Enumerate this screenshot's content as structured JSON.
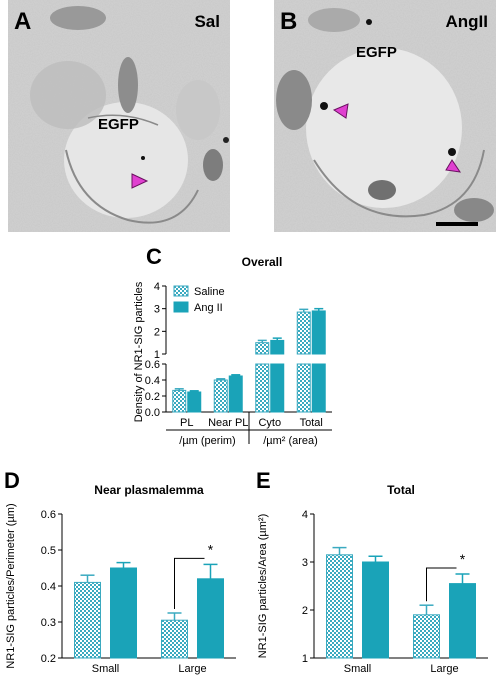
{
  "panels": {
    "a": {
      "letter": "A",
      "condition": "Sal",
      "target_label": "EGFP"
    },
    "b": {
      "letter": "B",
      "condition": "AngII",
      "target_label": "EGFP"
    }
  },
  "colors": {
    "saline": "#3aaac0",
    "angii": "#1aa3b8",
    "arrow": "#e040d0"
  },
  "chart_data": [
    {
      "id": "C",
      "type": "bar",
      "letter": "C",
      "title": "Overall",
      "ylabel": "Density of NR1-SIG particles",
      "categories": [
        "PL",
        "Near PL",
        "Cyto",
        "Total"
      ],
      "series": [
        {
          "name": "Saline",
          "values": [
            0.27,
            0.4,
            1.5,
            2.85
          ],
          "errors": [
            0.02,
            0.015,
            0.1,
            0.12
          ]
        },
        {
          "name": "Ang II",
          "values": [
            0.25,
            0.45,
            1.6,
            2.9
          ],
          "errors": [
            0.015,
            0.015,
            0.1,
            0.1
          ]
        }
      ],
      "axis_break": {
        "lower": [
          0,
          0.6
        ],
        "upper": [
          1,
          4
        ]
      },
      "yticks_lower": [
        "0.0",
        "0.2",
        "0.4",
        "0.6"
      ],
      "yticks_upper": [
        "1",
        "2",
        "3",
        "4"
      ],
      "groups": [
        {
          "label": "/µm (perim)",
          "categories": [
            "PL",
            "Near PL"
          ]
        },
        {
          "label": "/µm² (area)",
          "categories": [
            "Cyto",
            "Total"
          ]
        }
      ],
      "legend": "top-left"
    },
    {
      "id": "D",
      "type": "bar",
      "letter": "D",
      "title": "Near plasmalemma",
      "ylabel": "NR1-SIG particles/Perimeter (µm)",
      "categories": [
        "Small",
        "Large"
      ],
      "series": [
        {
          "name": "Saline",
          "values": [
            0.41,
            0.305
          ],
          "errors": [
            0.02,
            0.02
          ]
        },
        {
          "name": "Ang II",
          "values": [
            0.45,
            0.42
          ],
          "errors": [
            0.015,
            0.04
          ]
        }
      ],
      "ylim": [
        0.2,
        0.6
      ],
      "yticks": [
        "0.2",
        "0.3",
        "0.4",
        "0.5",
        "0.6"
      ],
      "significance": "*"
    },
    {
      "id": "E",
      "type": "bar",
      "letter": "E",
      "title": "Total",
      "ylabel": "NR1-SIG particles/Area (µm²)",
      "categories": [
        "Small",
        "Large"
      ],
      "series": [
        {
          "name": "Saline",
          "values": [
            3.15,
            1.9
          ],
          "errors": [
            0.15,
            0.2
          ]
        },
        {
          "name": "Ang II",
          "values": [
            3.0,
            2.55
          ],
          "errors": [
            0.12,
            0.2
          ]
        }
      ],
      "ylim": [
        1,
        4
      ],
      "yticks": [
        "1",
        "2",
        "3",
        "4"
      ],
      "significance": "*"
    }
  ]
}
